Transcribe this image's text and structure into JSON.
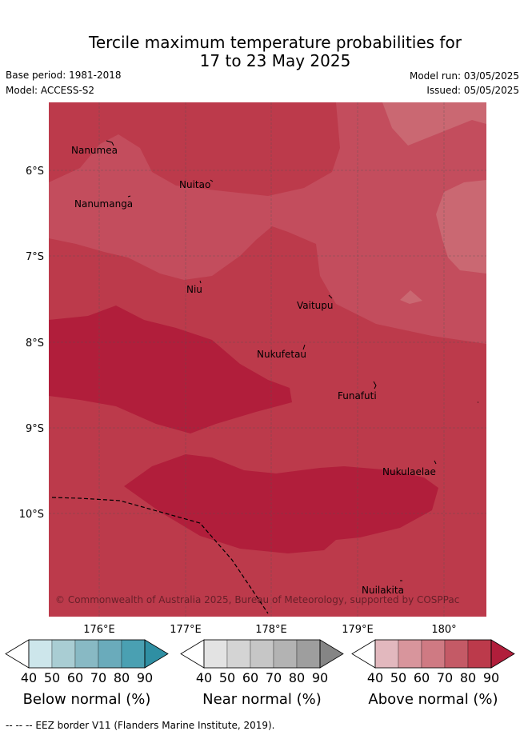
{
  "title_line1": "Tercile maximum temperature probabilities for",
  "title_line2": "17 to 23 May 2025",
  "base_period": "Base period: 1981-2018",
  "model": "Model: ACCESS-S2",
  "model_run": "Model run: 03/05/2025",
  "issued": "Issued: 05/05/2025",
  "lon_ticks": [
    "176°E",
    "177°E",
    "178°E",
    "179°E",
    "180°"
  ],
  "lat_ticks": [
    "6°S",
    "7°S",
    "8°S",
    "9°S",
    "10°S"
  ],
  "places": [
    {
      "name": "Nanumea"
    },
    {
      "name": "Nuitao"
    },
    {
      "name": "Nanumanga"
    },
    {
      "name": "Niu"
    },
    {
      "name": "Vaitupu"
    },
    {
      "name": "Nukufetau"
    },
    {
      "name": "Funafuti"
    },
    {
      "name": "Nukulaelae"
    },
    {
      "name": "Nuilakita"
    }
  ],
  "copyright": "© Commonwealth of Australia 2025, Bureau of Meteorology, supported by COSPPac",
  "colorbars": [
    {
      "label": "Below normal (%)",
      "ticks": [
        "40",
        "50",
        "60",
        "70",
        "80",
        "90"
      ],
      "colors": [
        "#ffffff",
        "#cde6eb",
        "#a9cdd3",
        "#88b9c4",
        "#6aabbb",
        "#4aa0b2",
        "#2f8fa3"
      ]
    },
    {
      "label": "Near normal (%)",
      "ticks": [
        "40",
        "50",
        "60",
        "70",
        "80",
        "90"
      ],
      "colors": [
        "#ffffff",
        "#e3e3e3",
        "#d4d4d4",
        "#c6c6c6",
        "#b3b3b3",
        "#9e9e9e",
        "#858585"
      ]
    },
    {
      "label": "Above normal (%)",
      "ticks": [
        "40",
        "50",
        "60",
        "70",
        "80",
        "90"
      ],
      "colors": [
        "#ffffff",
        "#e2b8be",
        "#d8959c",
        "#cf7a83",
        "#c45a66",
        "#bc3a4b",
        "#b11e3b"
      ]
    }
  ],
  "eez_legend": "--  --  -- EEZ border V11 (Flanders Marine Institute, 2019)."
}
